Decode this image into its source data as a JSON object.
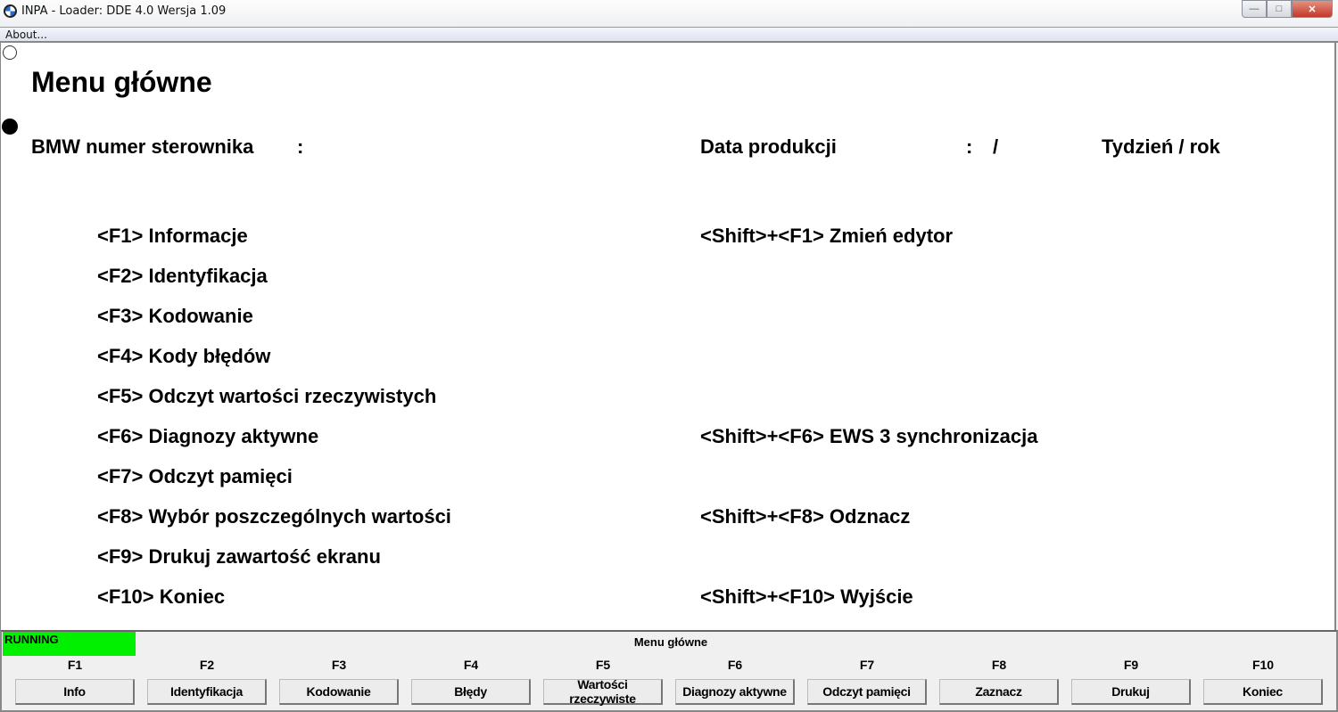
{
  "window": {
    "title": "INPA - Loader:  DDE 4.0 Wersja 1.09",
    "minimize": "—",
    "maximize": "□",
    "close": "✕"
  },
  "menu": {
    "about": "About..."
  },
  "main": {
    "title": "Menu główne",
    "header": {
      "controller_label": "BMW numer sterownika",
      "controller_sep": ":",
      "date_label": "Data produkcji",
      "date_sep": ":",
      "date_slash": "/",
      "week_year_label": "Tydzień / rok"
    },
    "left_items": [
      "<F1> Informacje",
      "<F2> Identyfikacja",
      "<F3> Kodowanie",
      "<F4> Kody błędów",
      "<F5> Odczyt wartości rzeczywistych",
      "<F6> Diagnozy aktywne",
      "<F7> Odczyt pamięci",
      "<F8> Wybór poszczególnych wartości",
      "<F9> Drukuj zawartość ekranu",
      "<F10> Koniec"
    ],
    "right_items": [
      {
        "row": 0,
        "label": "<Shift>+<F1> Zmień edytor"
      },
      {
        "row": 5,
        "label": "<Shift>+<F6> EWS 3 synchronizacja"
      },
      {
        "row": 7,
        "label": "<Shift>+<F8> Odznacz"
      },
      {
        "row": 9,
        "label": "<Shift>+<F10> Wyjście"
      }
    ]
  },
  "status": {
    "state": "RUNNING",
    "state_color": "#00f000",
    "screen": "Menu główne"
  },
  "function_keys": [
    {
      "key": "F1",
      "label": "Info"
    },
    {
      "key": "F2",
      "label": "Identyfikacja"
    },
    {
      "key": "F3",
      "label": "Kodowanie"
    },
    {
      "key": "F4",
      "label": "Błędy"
    },
    {
      "key": "F5",
      "label": "Wartości  rzeczywiste"
    },
    {
      "key": "F6",
      "label": "Diagnozy aktywne"
    },
    {
      "key": "F7",
      "label": "Odczyt pamięci"
    },
    {
      "key": "F8",
      "label": "Zaznacz"
    },
    {
      "key": "F9",
      "label": "Drukuj"
    },
    {
      "key": "F10",
      "label": "Koniec"
    }
  ]
}
